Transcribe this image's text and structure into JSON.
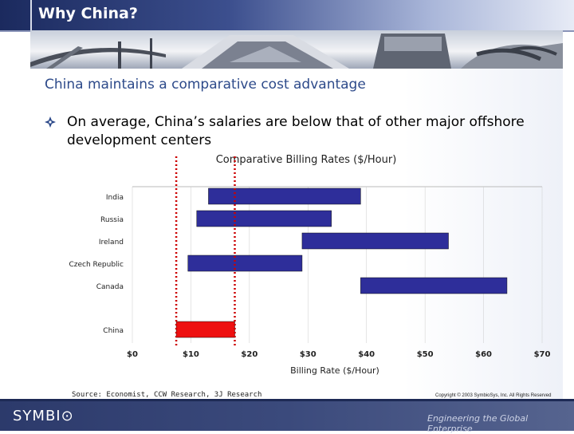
{
  "slide": {
    "title": "Why China?",
    "subtitle": "China maintains a comparative cost advantage",
    "bullet": "On average, China’s salaries are below that of other major offshore development centers",
    "source": "Source: Economist, CCW Research, 3J Research",
    "copyright": "Copyright © 2003 SymbioSys, Inc. All Rights Reserved",
    "tagline": "Engineering the Global Enterprise",
    "logo": "SYMBI⊙"
  },
  "colors": {
    "title_text": "#ffffff",
    "subtitle_text": "#2d4a8a",
    "bar_fill": "#2e2e9a",
    "china_fill": "#ee1111",
    "ref_line": "#cc0000",
    "grid_line": "#cccccc",
    "footer": "#2c3a6b"
  },
  "chart_data": {
    "type": "bar",
    "orientation": "horizontal-range",
    "title": "Comparative Billing Rates ($/Hour)",
    "xlabel": "Billing Rate ($/Hour)",
    "ylabel": "",
    "xlim": [
      0,
      70
    ],
    "x_ticks": [
      "$0",
      "$10",
      "$20",
      "$30",
      "$40",
      "$50",
      "$60",
      "$70"
    ],
    "x_tick_values": [
      0,
      10,
      20,
      30,
      40,
      50,
      60,
      70
    ],
    "reference_lines": [
      7.5,
      17.5
    ],
    "categories": [
      "India",
      "Russia",
      "Ireland",
      "Czech Republic",
      "Canada",
      "China"
    ],
    "ranges": [
      {
        "country": "India",
        "low": 13,
        "high": 39,
        "highlight": false
      },
      {
        "country": "Russia",
        "low": 11,
        "high": 34,
        "highlight": false
      },
      {
        "country": "Ireland",
        "low": 29,
        "high": 54,
        "highlight": false
      },
      {
        "country": "Czech Republic",
        "low": 9.5,
        "high": 29,
        "highlight": false
      },
      {
        "country": "Canada",
        "low": 39,
        "high": 64,
        "highlight": false
      },
      {
        "country": "China",
        "low": 7.5,
        "high": 17.5,
        "highlight": true
      }
    ]
  }
}
